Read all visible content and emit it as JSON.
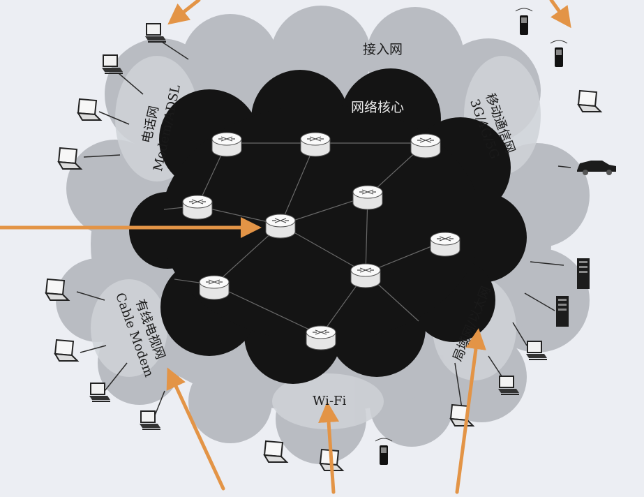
{
  "labels": {
    "access_network": "接入网",
    "network_core": "网络核心",
    "phone_network": "电话网",
    "phone_modem": "Modem/ADSL",
    "mobile_network": "移动通信网",
    "mobile_gen": "3G/4G/5G",
    "cable_network": "有线电视网",
    "cable_modem": "Cable Modem",
    "lan": "局域网/以太网",
    "wifi": "Wi-Fi"
  },
  "colors": {
    "background": "#eceef3",
    "access_cloud": "#b9bcc2",
    "core_cloud": "#141414",
    "router": "#f4f4f4",
    "arrow": "#e39446"
  }
}
